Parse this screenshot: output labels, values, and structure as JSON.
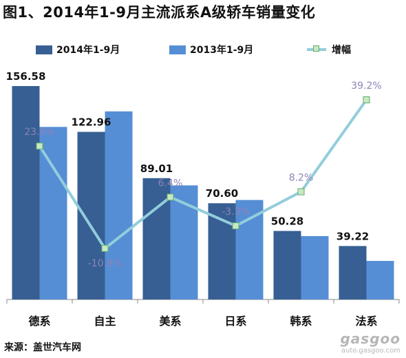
{
  "title": "图1、2014年1-9月主流派系A级轿车销量变化",
  "legend": {
    "series1": "2014年1-9月",
    "series2": "2013年1-9月",
    "series3": "增幅"
  },
  "source": "来源：盖世汽车网",
  "watermark": {
    "logo": "gasgoo",
    "url": "auto.gasgoo.com"
  },
  "colors": {
    "series_2014": "#375f93",
    "series_2013": "#558ed5",
    "growth_line": "#92cddc",
    "growth_marker": "#c7e8c0",
    "growth_label": "#8e83b6"
  },
  "chart_data": {
    "type": "bar",
    "categories": [
      "德系",
      "自主",
      "美系",
      "日系",
      "韩系",
      "法系"
    ],
    "series": [
      {
        "name": "2014年1-9月",
        "values": [
          156.58,
          122.96,
          89.01,
          70.6,
          50.28,
          39.22
        ],
        "labels": [
          "156.58",
          "122.96",
          "89.01",
          "70.60",
          "50.28",
          "39.22"
        ]
      },
      {
        "name": "2013年1-9月",
        "values": [
          126.6,
          138.0,
          83.7,
          73.0,
          46.5,
          28.3
        ]
      }
    ],
    "line_series": {
      "name": "增幅",
      "values": [
        23.6,
        -10.9,
        6.4,
        -3.3,
        8.2,
        39.2
      ],
      "labels": [
        "23.6%",
        "-10.9%",
        "6.4%",
        "-3.3%",
        "8.2%",
        "39.2%"
      ]
    },
    "ylim": [
      0,
      165
    ],
    "line_ylim": [
      -20,
      45
    ],
    "grid": false,
    "legend_position": "top"
  }
}
